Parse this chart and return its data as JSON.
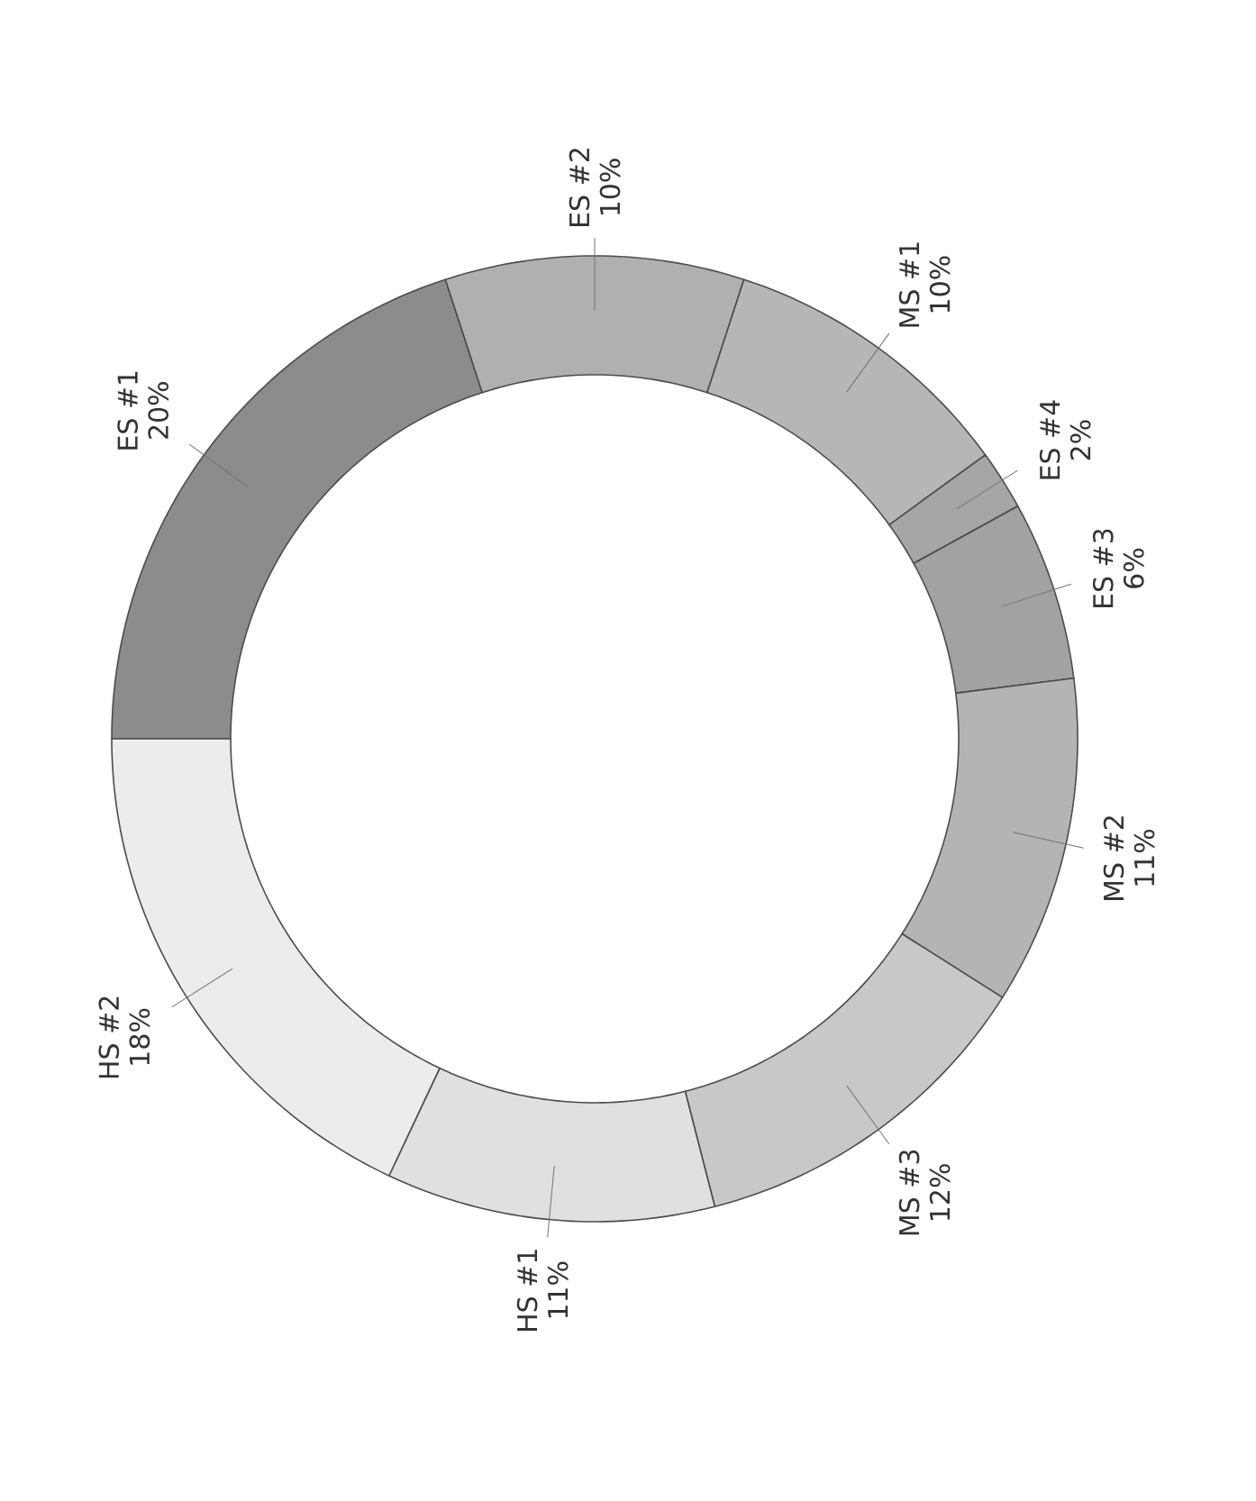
{
  "chart_data": {
    "type": "donut",
    "categories": [
      "ES #1",
      "ES #2",
      "MS #1",
      "ES #4",
      "ES #3",
      "MS #2",
      "MS #3",
      "HS #1",
      "HS #2"
    ],
    "values": [
      20,
      10,
      10,
      2,
      6,
      11,
      12,
      11,
      18
    ],
    "value_labels": [
      "20%",
      "10%",
      "10%",
      "2%",
      "6%",
      "11%",
      "12%",
      "11%",
      "18%"
    ],
    "colors": [
      "#8c8c8c",
      "#b0b0b0",
      "#b6b6b6",
      "#a6a6a6",
      "#a2a2a2",
      "#b4b4b4",
      "#c8c8c8",
      "#e0e0e0",
      "#ececec"
    ]
  }
}
